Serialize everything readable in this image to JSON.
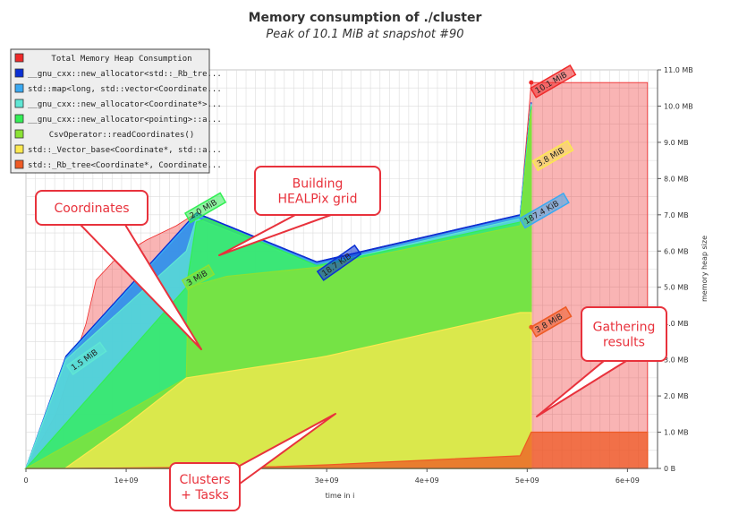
{
  "chart_data": {
    "type": "area",
    "title": "Memory consumption of ./cluster",
    "subtitle": "Peak of 10.1 MiB at snapshot #90",
    "xlabel": "time in i",
    "ylabel": "memory heap size",
    "xlim": [
      0,
      6300000000.0
    ],
    "ylim": [
      0,
      11.0
    ],
    "x_ticks": [
      {
        "v": 0,
        "label": "0"
      },
      {
        "v": 1000000000.0,
        "label": "1e+09"
      },
      {
        "v": 2000000000.0,
        "label": "2e+09"
      },
      {
        "v": 3000000000.0,
        "label": "3e+09"
      },
      {
        "v": 4000000000.0,
        "label": "4e+09"
      },
      {
        "v": 5000000000.0,
        "label": "5e+09"
      },
      {
        "v": 6000000000.0,
        "label": "6e+09"
      }
    ],
    "y_ticks": [
      {
        "v": 0,
        "label": "0 B"
      },
      {
        "v": 1,
        "label": "1.0 MB"
      },
      {
        "v": 2,
        "label": "2.0 MB"
      },
      {
        "v": 3,
        "label": "3.0 MB"
      },
      {
        "v": 4,
        "label": "4.0 MB"
      },
      {
        "v": 5,
        "label": "5.0 MB"
      },
      {
        "v": 6,
        "label": "6.0 MB"
      },
      {
        "v": 7,
        "label": "7.0 MB"
      },
      {
        "v": 8,
        "label": "8.0 MB"
      },
      {
        "v": 9,
        "label": "9.0 MB"
      },
      {
        "v": 10,
        "label": "10.0 MB"
      },
      {
        "v": 11,
        "label": "11.0 MB"
      }
    ],
    "grid": true,
    "legend_position": "top-left",
    "series": [
      {
        "name": "std::_Rb_tree<Coordinate*, Coordinate...",
        "color": "#ee5a24",
        "points": [
          [
            0,
            0
          ],
          [
            390000000.0,
            0
          ],
          [
            2500000000.0,
            0.05
          ],
          [
            3000000000.0,
            0.1
          ],
          [
            4930000000.0,
            0.35
          ],
          [
            5040000000.0,
            1.0
          ],
          [
            6200000000.0,
            1.0
          ],
          [
            6200000000.0,
            0
          ],
          [
            0,
            0
          ]
        ]
      },
      {
        "name": "std::_Vector_base<Coordinate*, std::a...",
        "color": "#fce94f",
        "points": [
          [
            0,
            0
          ],
          [
            390000000.0,
            0
          ],
          [
            1000000000.0,
            1.2
          ],
          [
            1600000000.0,
            2.5
          ],
          [
            2900000000.0,
            3.05
          ],
          [
            3000000000.0,
            3.1
          ],
          [
            4930000000.0,
            4.3
          ],
          [
            5040000000.0,
            4.3
          ],
          [
            5040000000.0,
            0
          ],
          [
            0,
            0
          ]
        ]
      },
      {
        "name": "CsvOperator::readCoordinates()",
        "color": "#8ae234",
        "points": [
          [
            0,
            0
          ],
          [
            1600000000.0,
            2.5
          ],
          [
            1620000000.0,
            5.0
          ],
          [
            2000000000.0,
            5.3
          ],
          [
            2900000000.0,
            5.55
          ],
          [
            3000000000.0,
            5.6
          ],
          [
            4930000000.0,
            6.7
          ],
          [
            5040000000.0,
            9.9
          ]
        ]
      },
      {
        "name": "__gnu_cxx::new_allocator<pointing>::a...",
        "color": "#33ee55",
        "points": [
          [
            0,
            0
          ],
          [
            1600000000.0,
            5.0
          ],
          [
            1700000000.0,
            6.8
          ],
          [
            1800000000.0,
            6.9
          ],
          [
            2900000000.0,
            5.6
          ],
          [
            3000000000.0,
            5.65
          ],
          [
            4930000000.0,
            6.8
          ],
          [
            5040000000.0,
            10.0
          ]
        ]
      },
      {
        "name": "__gnu_cxx::new_allocator<Coordinate*>...",
        "color": "#5ee6d4",
        "points": [
          [
            0,
            0
          ],
          [
            400000000.0,
            3.0
          ],
          [
            1600000000.0,
            6.0
          ],
          [
            1700000000.0,
            6.9
          ],
          [
            2900000000.0,
            5.6
          ],
          [
            4930000000.0,
            6.9
          ],
          [
            5040000000.0,
            10.05
          ]
        ]
      },
      {
        "name": "std::map<long, std::vector<Coordinate...",
        "color": "#39a9f2",
        "points": [
          [
            0,
            0
          ],
          [
            400000000.0,
            3.05
          ],
          [
            1700000000.0,
            7.0
          ],
          [
            2900000000.0,
            5.65
          ],
          [
            4930000000.0,
            6.95
          ],
          [
            5040000000.0,
            10.07
          ]
        ]
      },
      {
        "name": "__gnu_cxx::new_allocator<std::_Rb_tre...",
        "color": "#0a2fd4",
        "points": [
          [
            0,
            0
          ],
          [
            400000000.0,
            3.1
          ],
          [
            1700000000.0,
            7.05
          ],
          [
            2900000000.0,
            5.7
          ],
          [
            4930000000.0,
            7.0
          ],
          [
            5040000000.0,
            10.1
          ]
        ]
      },
      {
        "name": "Total Memory Heap Consumption",
        "color": "#ef2929",
        "points": [
          [
            0,
            0
          ],
          [
            300000000.0,
            1.5
          ],
          [
            600000000.0,
            4.0
          ],
          [
            700000000.0,
            5.2
          ],
          [
            900000000.0,
            5.8
          ],
          [
            1200000000.0,
            6.3
          ],
          [
            1500000000.0,
            6.7
          ],
          [
            1700000000.0,
            7.05
          ],
          [
            2900000000.0,
            5.7
          ],
          [
            3100000000.0,
            5.8
          ],
          [
            4930000000.0,
            7.0
          ],
          [
            5040000000.0,
            10.65
          ],
          [
            6200000000.0,
            10.65
          ]
        ]
      }
    ],
    "markers": [
      {
        "label": "10.1 MiB",
        "x": 5040000000.0,
        "y": 10.65,
        "color": "#ef2929"
      },
      {
        "label": "3.8 MiB",
        "x": 5040000000.0,
        "y": 7.3,
        "color": "#fce94f"
      },
      {
        "label": "187.4 KiB",
        "x": 4930000000.0,
        "y": 6.95,
        "color": "#39a9f2"
      },
      {
        "label": "3.8 MiB",
        "x": 5040000000.0,
        "y": 3.9,
        "color": "#ee5a24"
      },
      {
        "label": "2.0 MiB",
        "x": 1700000000.0,
        "y": 7.0,
        "color": "#33ee55"
      },
      {
        "label": "1.5 MiB",
        "x": 400000000.0,
        "y": 3.05,
        "color": "#5ee6d4"
      },
      {
        "label": "18.7 KiB",
        "x": 2900000000.0,
        "y": 5.65,
        "color": "#0a2fd4"
      },
      {
        "label": "3 MiB",
        "x": 1600000000.0,
        "y": 5.0,
        "color": "#8ae234"
      }
    ],
    "callouts": [
      {
        "text": "Coordinates"
      },
      {
        "text": "Building\nHEALPix grid"
      },
      {
        "text": "Gathering\nresults"
      },
      {
        "text": "Clusters\n+ Tasks"
      }
    ]
  }
}
